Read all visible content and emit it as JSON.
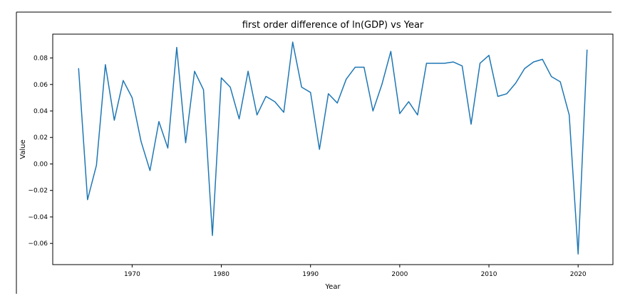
{
  "chart_data": {
    "type": "line",
    "title": "first order difference of ln(GDP) vs Year",
    "xlabel": "Year",
    "ylabel": "Value",
    "xlim": [
      1961.1,
      2023.9
    ],
    "ylim": [
      -0.076,
      0.098
    ],
    "xticks": [
      1970,
      1980,
      1990,
      2000,
      2010,
      2020
    ],
    "yticks": [
      -0.06,
      -0.04,
      -0.02,
      0.0,
      0.02,
      0.04,
      0.06,
      0.08
    ],
    "ytick_labels": [
      "−0.06",
      "−0.04",
      "−0.02",
      "0.00",
      "0.02",
      "0.04",
      "0.06",
      "0.08"
    ],
    "grid": false,
    "series": [
      {
        "color": "#1f77b4",
        "x": [
          1964,
          1965,
          1966,
          1967,
          1968,
          1969,
          1970,
          1971,
          1972,
          1973,
          1974,
          1975,
          1976,
          1977,
          1978,
          1979,
          1980,
          1981,
          1982,
          1983,
          1984,
          1985,
          1986,
          1987,
          1988,
          1989,
          1990,
          1991,
          1992,
          1993,
          1994,
          1995,
          1996,
          1997,
          1998,
          1999,
          2000,
          2001,
          2002,
          2003,
          2004,
          2005,
          2006,
          2007,
          2008,
          2009,
          2010,
          2011,
          2012,
          2013,
          2014,
          2015,
          2016,
          2017,
          2018,
          2019,
          2020,
          2021
        ],
        "y": [
          0.072,
          -0.027,
          -0.001,
          0.075,
          0.033,
          0.063,
          0.05,
          0.017,
          -0.005,
          0.032,
          0.012,
          0.088,
          0.016,
          0.07,
          0.056,
          -0.054,
          0.065,
          0.058,
          0.034,
          0.07,
          0.037,
          0.051,
          0.047,
          0.039,
          0.092,
          0.058,
          0.054,
          0.011,
          0.053,
          0.046,
          0.064,
          0.073,
          0.073,
          0.04,
          0.06,
          0.085,
          0.038,
          0.047,
          0.037,
          0.076,
          0.076,
          0.076,
          0.077,
          0.074,
          0.03,
          0.076,
          0.082,
          0.051,
          0.053,
          0.061,
          0.072,
          0.077,
          0.079,
          0.066,
          0.062,
          0.037,
          -0.068,
          0.086
        ]
      }
    ]
  }
}
